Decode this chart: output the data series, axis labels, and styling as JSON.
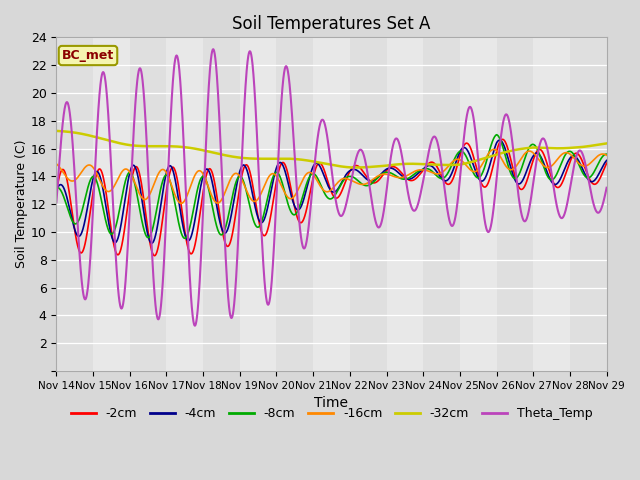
{
  "title": "Soil Temperatures Set A",
  "xlabel": "Time",
  "ylabel": "Soil Temperature (C)",
  "xlim": [
    0,
    15
  ],
  "ylim": [
    0,
    24
  ],
  "yticks": [
    0,
    2,
    4,
    6,
    8,
    10,
    12,
    14,
    16,
    18,
    20,
    22,
    24
  ],
  "xtick_labels": [
    "Nov 14",
    "Nov 15",
    "Nov 16",
    "Nov 17",
    "Nov 18",
    "Nov 19",
    "Nov 20",
    "Nov 21",
    "Nov 22",
    "Nov 23",
    "Nov 24",
    "Nov 25",
    "Nov 26",
    "Nov 27",
    "Nov 28",
    "Nov 29"
  ],
  "bg_color": "#e8e8e8",
  "stripe_color": "#d4d4d4",
  "annotation_text": "BC_met",
  "annotation_color": "#8b0000",
  "annotation_bg": "#f5f5b0",
  "series": {
    "-2cm": {
      "color": "#ff0000",
      "lw": 1.2
    },
    "-4cm": {
      "color": "#00008b",
      "lw": 1.2
    },
    "-8cm": {
      "color": "#00aa00",
      "lw": 1.2
    },
    "-16cm": {
      "color": "#ff8800",
      "lw": 1.2
    },
    "-32cm": {
      "color": "#cccc00",
      "lw": 1.8
    },
    "Theta_Temp": {
      "color": "#bb44bb",
      "lw": 1.5
    }
  },
  "legend_order": [
    "-2cm",
    "-4cm",
    "-8cm",
    "-16cm",
    "-32cm",
    "Theta_Temp"
  ]
}
